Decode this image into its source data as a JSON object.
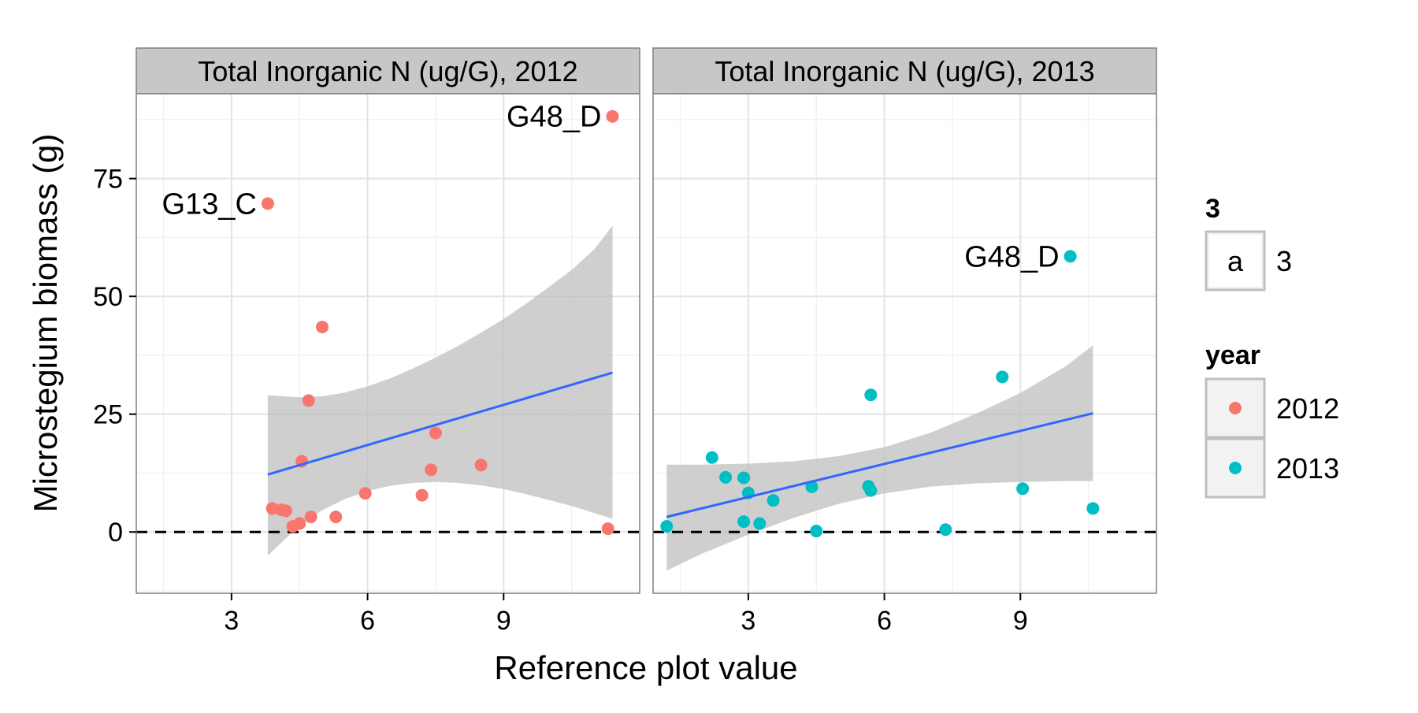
{
  "chart_data": {
    "type": "scatter",
    "ylabel": "Microstegium biomass (g)",
    "xlabel": "Reference plot value",
    "xlim": [
      0.9,
      12.0
    ],
    "ylim": [
      -13,
      93
    ],
    "x_ticks": [
      3,
      6,
      9
    ],
    "y_ticks": [
      0,
      25,
      50,
      75
    ],
    "grid": true,
    "reference_line_y": 0,
    "legend_position": "right",
    "colors": {
      "2012": "#F8766D",
      "2013": "#00BFC4",
      "fit_line": "#3366FF",
      "ribbon": "#BDBDBD",
      "strip": "#C7C7C7"
    },
    "panels": [
      {
        "strip_title": "Total Inorganic N (ug/G), 2012",
        "year": "2012",
        "points": [
          [
            3.8,
            69.7
          ],
          [
            11.4,
            88.2
          ],
          [
            5.0,
            43.5
          ],
          [
            4.7,
            27.9
          ],
          [
            7.5,
            21.0
          ],
          [
            4.55,
            15.0
          ],
          [
            8.5,
            14.2
          ],
          [
            7.4,
            13.2
          ],
          [
            5.95,
            8.2
          ],
          [
            7.2,
            7.8
          ],
          [
            3.9,
            5.0
          ],
          [
            4.1,
            4.7
          ],
          [
            4.2,
            4.5
          ],
          [
            4.75,
            3.2
          ],
          [
            5.3,
            3.2
          ],
          [
            4.5,
            1.8
          ],
          [
            4.35,
            1.2
          ],
          [
            11.3,
            0.7
          ]
        ],
        "labels": [
          {
            "text": "G13_C",
            "x": 3.8,
            "y": 69.7
          },
          {
            "text": "G48_D",
            "x": 11.4,
            "y": 88.2
          }
        ],
        "fit": {
          "x": [
            3.8,
            11.4
          ],
          "y": [
            12.2,
            33.8
          ]
        },
        "ribbon": {
          "x": [
            3.8,
            4.5,
            5.0,
            5.5,
            6.0,
            6.5,
            7.0,
            7.5,
            8.0,
            8.5,
            9.0,
            9.5,
            10.0,
            10.5,
            11.0,
            11.4
          ],
          "upper": [
            29.0,
            28.6,
            28.8,
            29.6,
            30.9,
            32.6,
            34.7,
            37.0,
            39.5,
            42.3,
            45.2,
            48.5,
            52.0,
            55.6,
            60.0,
            65.0
          ],
          "lower": [
            -5.0,
            1.4,
            4.6,
            7.0,
            8.7,
            9.8,
            10.4,
            10.6,
            10.4,
            9.9,
            9.1,
            8.0,
            6.8,
            5.5,
            4.0,
            2.8
          ]
        }
      },
      {
        "strip_title": "Total Inorganic N (ug/G), 2013",
        "year": "2013",
        "points": [
          [
            10.1,
            58.5
          ],
          [
            8.6,
            32.9
          ],
          [
            5.7,
            29.1
          ],
          [
            2.2,
            15.8
          ],
          [
            2.5,
            11.6
          ],
          [
            2.9,
            11.5
          ],
          [
            5.65,
            9.7
          ],
          [
            4.4,
            9.6
          ],
          [
            9.05,
            9.2
          ],
          [
            5.7,
            8.8
          ],
          [
            3.0,
            8.3
          ],
          [
            3.55,
            6.7
          ],
          [
            10.6,
            5.0
          ],
          [
            2.9,
            2.2
          ],
          [
            3.25,
            1.8
          ],
          [
            1.2,
            1.2
          ],
          [
            7.35,
            0.5
          ],
          [
            4.5,
            0.2
          ]
        ],
        "labels": [
          {
            "text": "G48_D",
            "x": 10.1,
            "y": 58.5
          }
        ],
        "fit": {
          "x": [
            1.2,
            10.6
          ],
          "y": [
            3.2,
            25.2
          ]
        },
        "ribbon": {
          "x": [
            1.2,
            2.0,
            3.0,
            4.0,
            5.0,
            6.0,
            7.0,
            8.0,
            9.0,
            10.0,
            10.6
          ],
          "upper": [
            14.3,
            14.3,
            14.5,
            15.0,
            16.1,
            18.0,
            21.0,
            25.0,
            29.5,
            35.2,
            39.6
          ],
          "lower": [
            -8.2,
            -4.5,
            -0.6,
            3.0,
            6.0,
            8.2,
            9.6,
            10.3,
            10.6,
            10.8,
            10.8
          ]
        }
      }
    ],
    "legends": [
      {
        "title": "3",
        "entries": [
          {
            "key": "a",
            "label": "3"
          }
        ]
      },
      {
        "title": "year",
        "entries": [
          {
            "key": "2012",
            "label": "2012"
          },
          {
            "key": "2013",
            "label": "2013"
          }
        ]
      }
    ]
  }
}
